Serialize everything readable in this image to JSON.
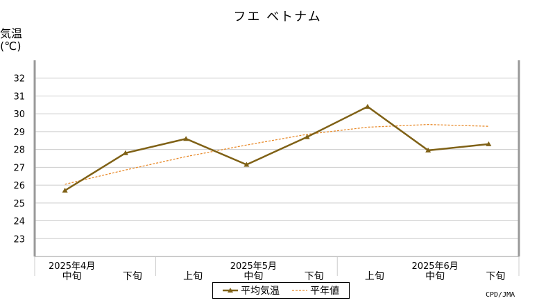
{
  "chart_data": {
    "type": "line",
    "title": "フエ ベトナム",
    "ylabel_line1": "気温",
    "ylabel_line2": "(℃)",
    "ylim": [
      22,
      33
    ],
    "yticks": [
      23,
      24,
      25,
      26,
      27,
      28,
      29,
      30,
      31,
      32
    ],
    "grid": true,
    "categories": [
      "中旬",
      "下旬",
      "上旬",
      "中旬",
      "下旬",
      "上旬",
      "中旬",
      "下旬"
    ],
    "month_labels": [
      {
        "label": "2025年4月",
        "index": 0
      },
      {
        "label": "2025年5月",
        "index": 3
      },
      {
        "label": "2025年6月",
        "index": 6
      }
    ],
    "series": [
      {
        "name": "平均気温",
        "color": "#7f6116",
        "values": [
          25.7,
          27.8,
          28.6,
          27.15,
          28.7,
          30.4,
          27.95,
          28.3
        ]
      },
      {
        "name": "平年値",
        "color": "#e88a2a",
        "values": [
          26.05,
          26.85,
          27.6,
          28.25,
          28.85,
          29.25,
          29.4,
          29.3
        ]
      }
    ],
    "legend_position": "bottom-center"
  },
  "credit": "CPD/JMA"
}
